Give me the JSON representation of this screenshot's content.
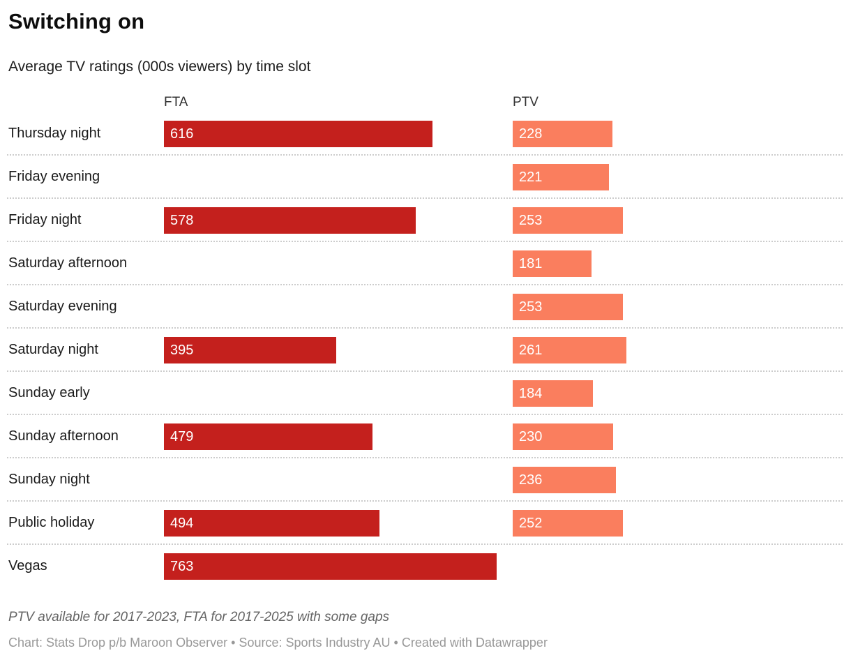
{
  "header": {
    "title": "Switching on",
    "subtitle": "Average TV ratings (000s viewers) by time slot"
  },
  "chart_data": {
    "type": "bar",
    "orientation": "horizontal",
    "title": "Switching on",
    "subtitle": "Average TV ratings (000s viewers) by time slot",
    "column_headers": {
      "fta": "FTA",
      "ptv": "PTV"
    },
    "categories": [
      "Thursday night",
      "Friday evening",
      "Friday night",
      "Saturday afternoon",
      "Saturday evening",
      "Saturday night",
      "Sunday early",
      "Sunday afternoon",
      "Sunday night",
      "Public holiday",
      "Vegas"
    ],
    "series": [
      {
        "name": "FTA",
        "color": "#c4201d",
        "values": [
          616,
          null,
          578,
          null,
          null,
          395,
          null,
          479,
          null,
          494,
          763
        ]
      },
      {
        "name": "PTV",
        "color": "#fa7e5e",
        "values": [
          228,
          221,
          253,
          181,
          253,
          261,
          184,
          230,
          236,
          252,
          null
        ]
      }
    ],
    "xmax": 763,
    "value_labels": "inside-left-white",
    "grid": "dotted-row-separators",
    "legend_position": "column-headers-above-bars"
  },
  "footer": {
    "note": "PTV available for 2017-2023, FTA for 2017-2025 with some gaps",
    "attribution": "Chart: Stats Drop p/b Maroon Observer • Source: Sports Industry AU • Created with Datawrapper"
  },
  "colors": {
    "fta_bar": "#c4201d",
    "ptv_bar": "#fa7e5e",
    "bar_value_text": "#ffffff",
    "row_label_text": "#1a1a1a",
    "separator": "#cccccc",
    "note_text": "#646464",
    "attribution_text": "#989898"
  }
}
